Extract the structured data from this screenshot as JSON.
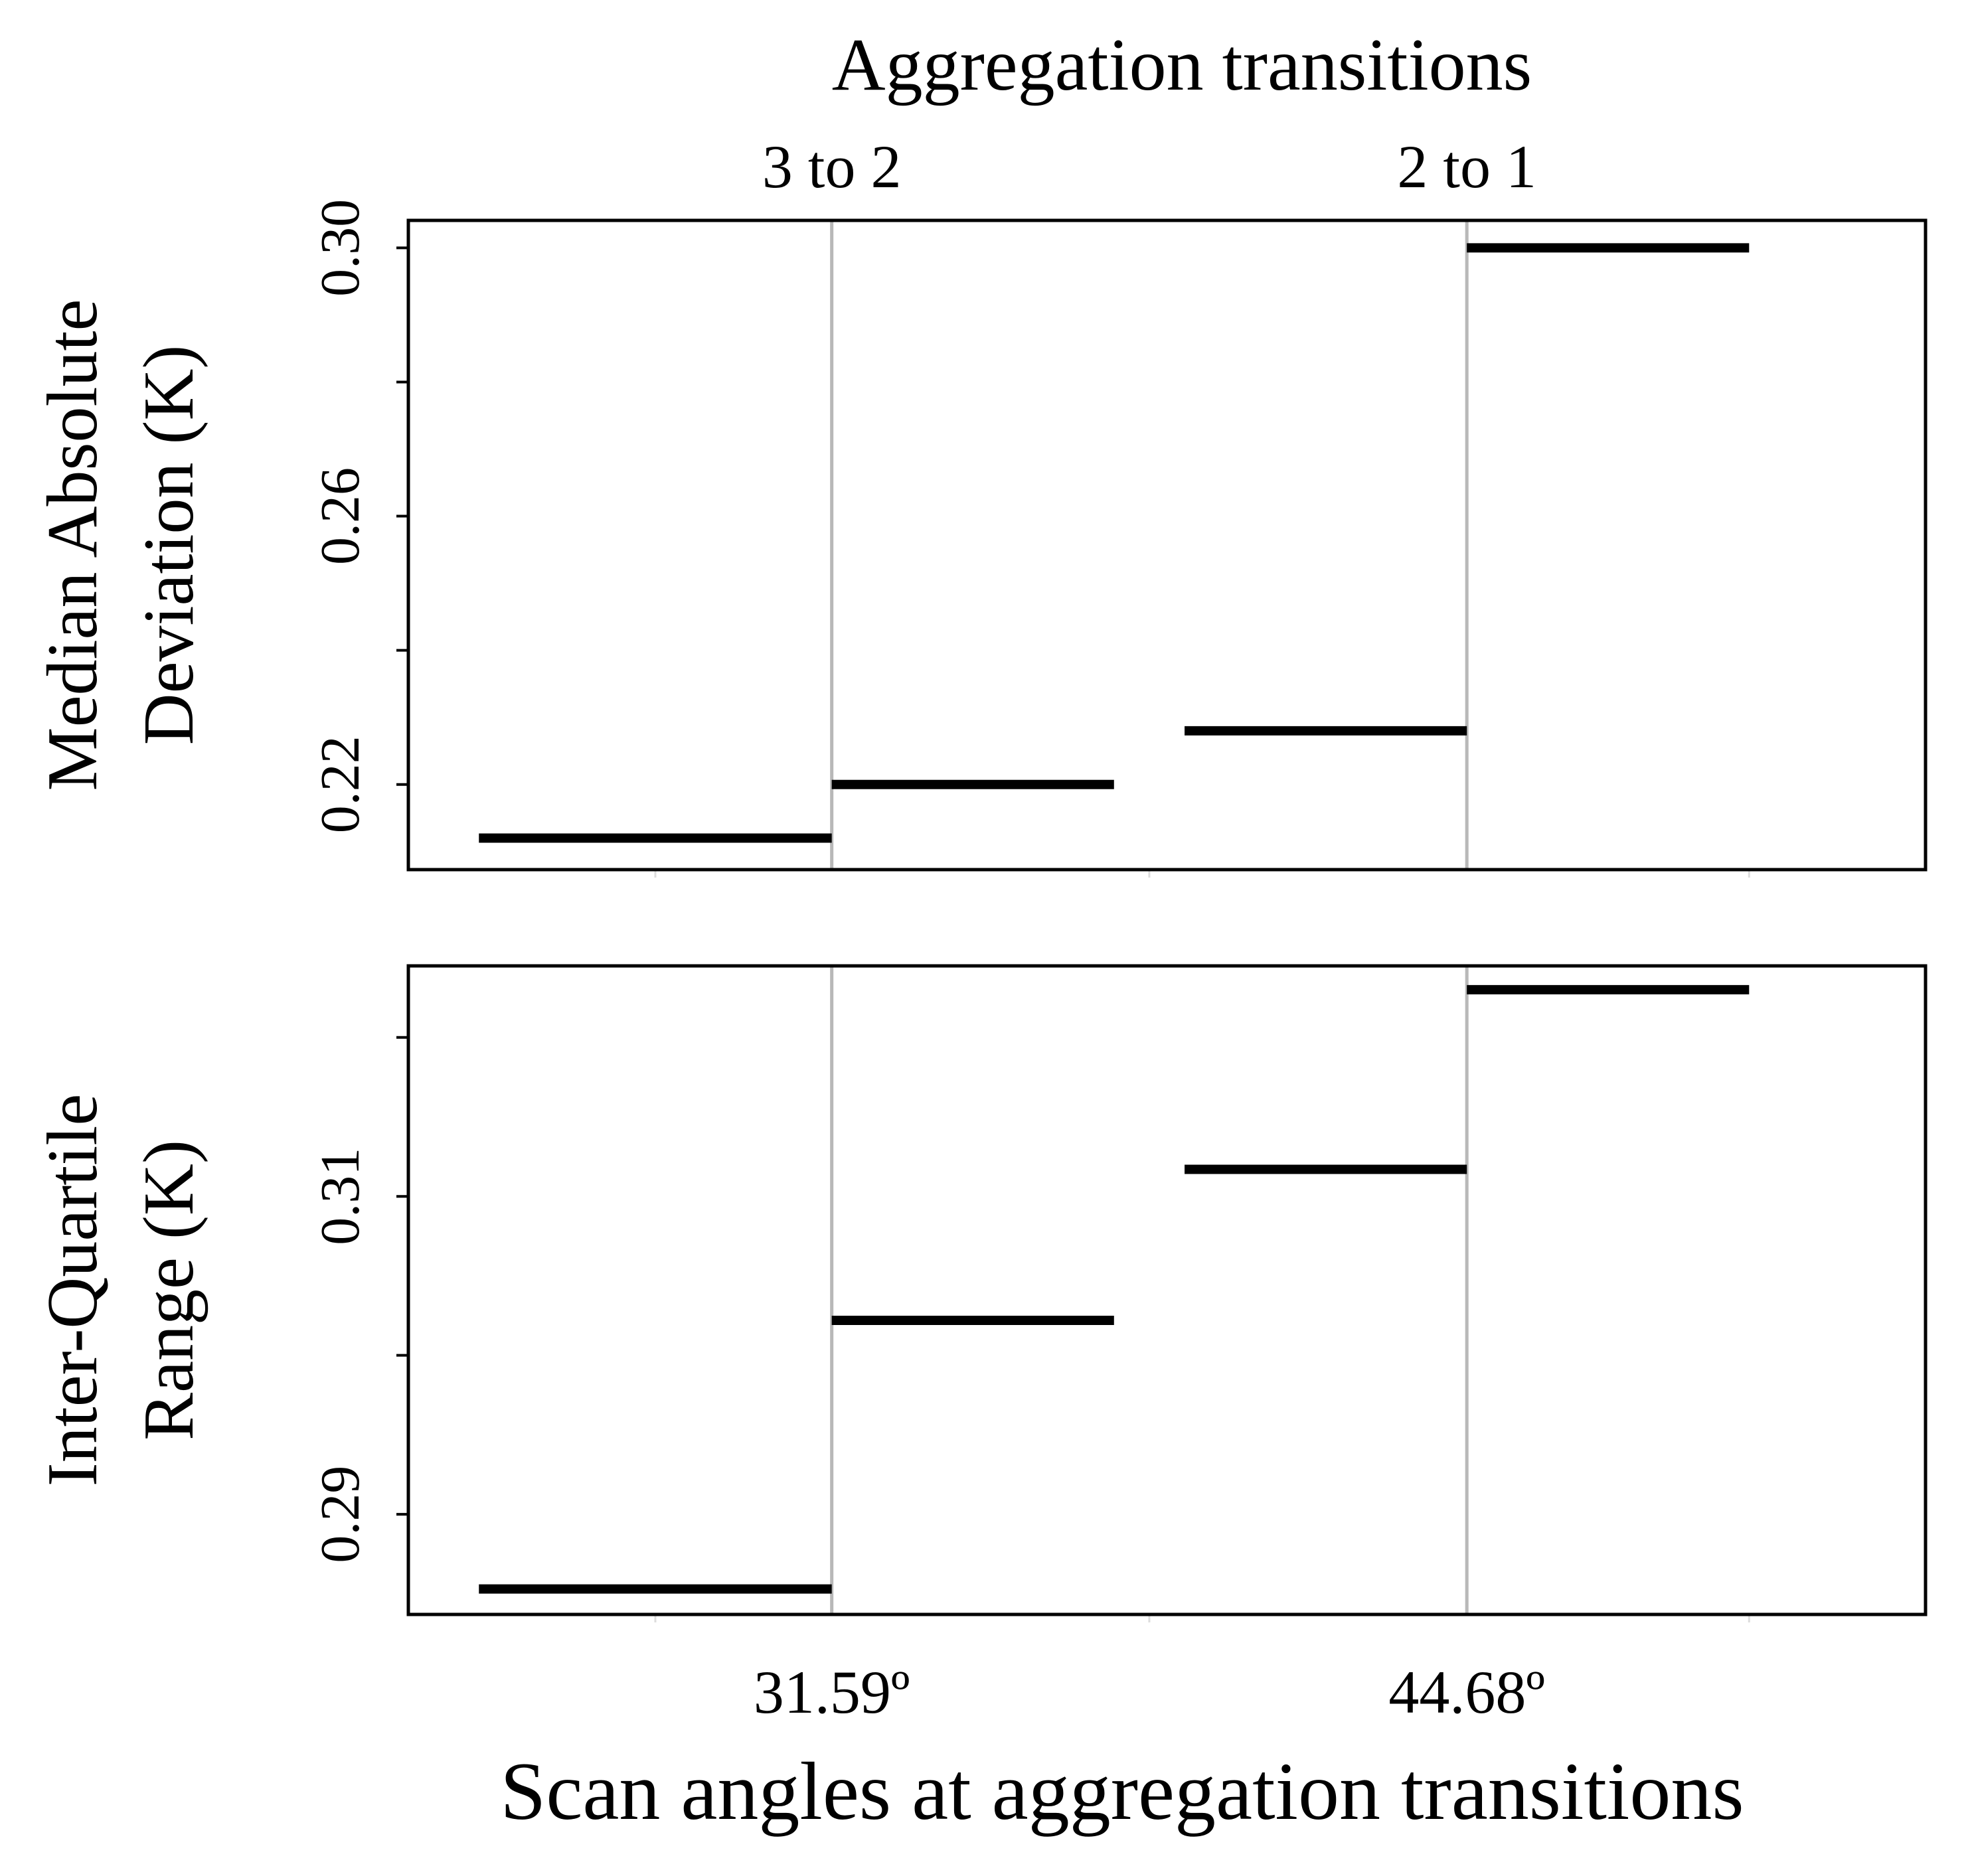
{
  "title": "Aggregation transitions",
  "transition_labels": [
    "3 to 2",
    "2 to 1"
  ],
  "angle_labels": [
    "31.59º",
    "44.68º"
  ],
  "xlabel": "Scan angles at aggregation transitions",
  "chart_data": [
    {
      "type": "line",
      "panel": "top",
      "ylabel_lines": [
        "Median Absolute",
        "Deviation  (K)"
      ],
      "ylim": [
        0.2073,
        0.3041
      ],
      "yticks": [
        0.22,
        0.24,
        0.26,
        0.28,
        0.3
      ],
      "ytick_labels": [
        "0.22",
        "",
        "0.26",
        "",
        "0.30"
      ],
      "xlim": [
        0,
        4.3
      ],
      "transitions": [
        1.2,
        3.0
      ],
      "segments": [
        {
          "x": [
            0.2,
            1.2
          ],
          "y": 0.212
        },
        {
          "x": [
            1.2,
            2.0
          ],
          "y": 0.22
        },
        {
          "x": [
            2.2,
            3.0
          ],
          "y": 0.228
        },
        {
          "x": [
            3.0,
            3.8
          ],
          "y": 0.3
        }
      ],
      "grid": false,
      "legend": "none"
    },
    {
      "type": "line",
      "panel": "bottom",
      "ylabel_lines": [
        "Inter-Quartile",
        "Range    (K)"
      ],
      "ylim": [
        0.2837,
        0.3245
      ],
      "yticks": [
        0.29,
        0.3,
        0.31,
        0.32
      ],
      "ytick_labels": [
        "0.29",
        "",
        "0.31",
        ""
      ],
      "xlim": [
        0,
        4.3
      ],
      "transitions": [
        1.2,
        3.0
      ],
      "segments": [
        {
          "x": [
            0.2,
            1.2
          ],
          "y": 0.2853
        },
        {
          "x": [
            1.2,
            2.0
          ],
          "y": 0.3022
        },
        {
          "x": [
            2.2,
            3.0
          ],
          "y": 0.3117
        },
        {
          "x": [
            3.0,
            3.8
          ],
          "y": 0.323
        }
      ],
      "grid": false,
      "legend": "none"
    }
  ]
}
